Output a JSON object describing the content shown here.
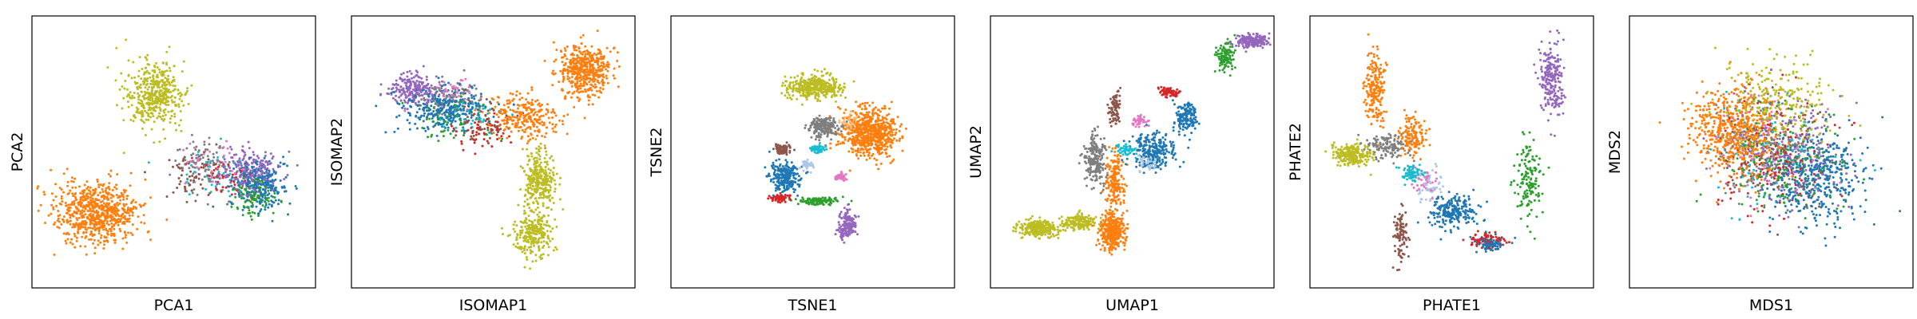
{
  "figure": {
    "background": "#ffffff",
    "axes_color": "#000000"
  },
  "palette": {
    "blue": "#1f77b4",
    "orange": "#ff7f0e",
    "green": "#2ca02c",
    "red": "#d62728",
    "purple": "#9467bd",
    "brown": "#8c564b",
    "pink": "#e377c2",
    "gray": "#7f7f7f",
    "olive": "#bcbd22",
    "cyan": "#17becf",
    "lightblue": "#aec7e8",
    "peach": "#ffbb78"
  },
  "chart_data": [
    {
      "type": "scatter",
      "xlabel": "PCA1",
      "ylabel": "PCA2",
      "xlim": [
        0,
        10
      ],
      "ylim": [
        0,
        10
      ],
      "xticks": [],
      "yticks": [],
      "grid": false,
      "legend": "none",
      "clusters": [
        {
          "color": "orange",
          "center": [
            2.3,
            2.8
          ],
          "spread": [
            1.35,
            1.0
          ],
          "count": 700
        },
        {
          "color": "olive",
          "center": [
            4.3,
            7.1
          ],
          "spread": [
            0.9,
            1.1
          ],
          "count": 450
        },
        {
          "color": "purple",
          "center": [
            7.6,
            4.3
          ],
          "spread": [
            1.0,
            0.8
          ],
          "count": 220
        },
        {
          "color": "blue",
          "center": [
            8.1,
            3.8
          ],
          "spread": [
            0.9,
            0.8
          ],
          "count": 260
        },
        {
          "color": "green",
          "center": [
            7.8,
            3.3
          ],
          "spread": [
            0.7,
            0.6
          ],
          "count": 110
        },
        {
          "color": "gray",
          "center": [
            6.0,
            4.6
          ],
          "spread": [
            1.0,
            0.8
          ],
          "count": 90
        },
        {
          "color": "brown",
          "center": [
            5.6,
            4.2
          ],
          "spread": [
            1.0,
            0.8
          ],
          "count": 60
        },
        {
          "color": "cyan",
          "center": [
            6.5,
            4.2
          ],
          "spread": [
            1.0,
            0.7
          ],
          "count": 50
        },
        {
          "color": "pink",
          "center": [
            6.2,
            4.6
          ],
          "spread": [
            1.0,
            0.8
          ],
          "count": 40
        },
        {
          "color": "red",
          "center": [
            6.8,
            4.0
          ],
          "spread": [
            0.9,
            0.7
          ],
          "count": 40
        }
      ]
    },
    {
      "type": "scatter",
      "xlabel": "ISOMAP1",
      "ylabel": "ISOMAP2",
      "xlim": [
        0,
        10
      ],
      "ylim": [
        0,
        10
      ],
      "xticks": [],
      "yticks": [],
      "grid": false,
      "legend": "none",
      "clusters": [
        {
          "color": "orange",
          "center": [
            8.2,
            8.0
          ],
          "spread": [
            0.9,
            0.9
          ],
          "count": 480
        },
        {
          "color": "orange",
          "center": [
            6.2,
            6.3
          ],
          "spread": [
            1.1,
            0.8
          ],
          "count": 260
        },
        {
          "color": "olive",
          "center": [
            6.6,
            4.0
          ],
          "spread": [
            0.5,
            1.0
          ],
          "count": 300
        },
        {
          "color": "olive",
          "center": [
            6.4,
            2.0
          ],
          "spread": [
            0.6,
            0.8
          ],
          "count": 240
        },
        {
          "color": "blue",
          "center": [
            3.3,
            6.6
          ],
          "spread": [
            1.3,
            0.7
          ],
          "count": 320
        },
        {
          "color": "purple",
          "center": [
            2.2,
            7.3
          ],
          "spread": [
            0.8,
            0.5
          ],
          "count": 200
        },
        {
          "color": "gray",
          "center": [
            3.5,
            7.0
          ],
          "spread": [
            1.0,
            0.6
          ],
          "count": 80
        },
        {
          "color": "brown",
          "center": [
            4.7,
            6.0
          ],
          "spread": [
            0.9,
            0.7
          ],
          "count": 70
        },
        {
          "color": "green",
          "center": [
            3.8,
            6.2
          ],
          "spread": [
            1.1,
            0.7
          ],
          "count": 60
        },
        {
          "color": "red",
          "center": [
            4.6,
            5.8
          ],
          "spread": [
            0.9,
            0.6
          ],
          "count": 50
        },
        {
          "color": "cyan",
          "center": [
            4.2,
            6.4
          ],
          "spread": [
            0.9,
            0.6
          ],
          "count": 40
        },
        {
          "color": "pink",
          "center": [
            3.6,
            7.2
          ],
          "spread": [
            0.9,
            0.5
          ],
          "count": 40
        }
      ]
    },
    {
      "type": "scatter",
      "xlabel": "TSNE1",
      "ylabel": "TSNE2",
      "xlim": [
        0,
        10
      ],
      "ylim": [
        0,
        10
      ],
      "xticks": [],
      "yticks": [],
      "grid": false,
      "legend": "none",
      "clusters": [
        {
          "color": "orange",
          "center": [
            7.0,
            5.7
          ],
          "spread": [
            0.85,
            0.8
          ],
          "count": 650
        },
        {
          "color": "olive",
          "center": [
            5.1,
            7.4
          ],
          "spread": [
            0.9,
            0.38
          ],
          "count": 360
        },
        {
          "color": "gray",
          "center": [
            5.4,
            5.9
          ],
          "spread": [
            0.5,
            0.32
          ],
          "count": 200
        },
        {
          "color": "blue",
          "center": [
            4.0,
            4.1
          ],
          "spread": [
            0.5,
            0.55
          ],
          "count": 230
        },
        {
          "color": "purple",
          "center": [
            6.2,
            2.3
          ],
          "spread": [
            0.3,
            0.5
          ],
          "count": 160
        },
        {
          "color": "green",
          "center": [
            5.2,
            3.2
          ],
          "spread": [
            0.65,
            0.12
          ],
          "count": 110
        },
        {
          "color": "red",
          "center": [
            3.9,
            3.3
          ],
          "spread": [
            0.3,
            0.12
          ],
          "count": 60
        },
        {
          "color": "brown",
          "center": [
            3.9,
            5.1
          ],
          "spread": [
            0.3,
            0.18
          ],
          "count": 70
        },
        {
          "color": "cyan",
          "center": [
            5.2,
            5.1
          ],
          "spread": [
            0.22,
            0.15
          ],
          "count": 55
        },
        {
          "color": "pink",
          "center": [
            6.0,
            4.1
          ],
          "spread": [
            0.18,
            0.14
          ],
          "count": 40
        },
        {
          "color": "lightblue",
          "center": [
            4.8,
            4.5
          ],
          "spread": [
            0.2,
            0.15
          ],
          "count": 40
        },
        {
          "color": "peach",
          "center": [
            6.3,
            6.1
          ],
          "spread": [
            0.35,
            0.3
          ],
          "count": 50
        }
      ]
    },
    {
      "type": "scatter",
      "xlabel": "UMAP1",
      "ylabel": "UMAP2",
      "xlim": [
        0,
        10
      ],
      "ylim": [
        0,
        10
      ],
      "xticks": [],
      "yticks": [],
      "grid": false,
      "legend": "none",
      "clusters": [
        {
          "color": "olive",
          "center": [
            1.7,
            2.2
          ],
          "spread": [
            0.6,
            0.28
          ],
          "count": 300
        },
        {
          "color": "olive",
          "center": [
            3.1,
            2.4
          ],
          "spread": [
            0.6,
            0.3
          ],
          "count": 160
        },
        {
          "color": "orange",
          "center": [
            4.3,
            2.1
          ],
          "spread": [
            0.4,
            0.6
          ],
          "count": 360
        },
        {
          "color": "orange",
          "center": [
            4.4,
            4.0
          ],
          "spread": [
            0.3,
            0.9
          ],
          "count": 180
        },
        {
          "color": "gray",
          "center": [
            3.7,
            4.7
          ],
          "spread": [
            0.35,
            0.9
          ],
          "count": 200
        },
        {
          "color": "blue",
          "center": [
            5.7,
            5.0
          ],
          "spread": [
            0.7,
            0.6
          ],
          "count": 240
        },
        {
          "color": "blue",
          "center": [
            6.9,
            6.3
          ],
          "spread": [
            0.35,
            0.5
          ],
          "count": 150
        },
        {
          "color": "brown",
          "center": [
            4.4,
            6.6
          ],
          "spread": [
            0.2,
            0.6
          ],
          "count": 80
        },
        {
          "color": "red",
          "center": [
            6.3,
            7.2
          ],
          "spread": [
            0.35,
            0.15
          ],
          "count": 90
        },
        {
          "color": "green",
          "center": [
            8.3,
            8.5
          ],
          "spread": [
            0.3,
            0.45
          ],
          "count": 110
        },
        {
          "color": "purple",
          "center": [
            9.2,
            9.1
          ],
          "spread": [
            0.5,
            0.22
          ],
          "count": 170
        },
        {
          "color": "cyan",
          "center": [
            4.8,
            5.1
          ],
          "spread": [
            0.3,
            0.2
          ],
          "count": 50
        },
        {
          "color": "pink",
          "center": [
            5.3,
            6.1
          ],
          "spread": [
            0.25,
            0.2
          ],
          "count": 40
        },
        {
          "color": "lightblue",
          "center": [
            5.5,
            4.6
          ],
          "spread": [
            0.3,
            0.3
          ],
          "count": 40
        }
      ]
    },
    {
      "type": "scatter",
      "xlabel": "PHATE1",
      "ylabel": "PHATE2",
      "xlim": [
        0,
        10
      ],
      "ylim": [
        0,
        10
      ],
      "xticks": [],
      "yticks": [],
      "grid": false,
      "legend": "none",
      "clusters": [
        {
          "color": "olive",
          "center": [
            1.5,
            4.9
          ],
          "spread": [
            0.55,
            0.4
          ],
          "count": 220
        },
        {
          "color": "orange",
          "center": [
            2.3,
            7.4
          ],
          "spread": [
            0.35,
            1.2
          ],
          "count": 200
        },
        {
          "color": "orange",
          "center": [
            3.6,
            5.6
          ],
          "spread": [
            0.45,
            0.7
          ],
          "count": 140
        },
        {
          "color": "gray",
          "center": [
            2.7,
            5.2
          ],
          "spread": [
            0.7,
            0.4
          ],
          "count": 130
        },
        {
          "color": "blue",
          "center": [
            5.1,
            2.8
          ],
          "spread": [
            0.8,
            0.6
          ],
          "count": 220
        },
        {
          "color": "blue",
          "center": [
            6.4,
            1.6
          ],
          "spread": [
            0.4,
            0.25
          ],
          "count": 90
        },
        {
          "color": "brown",
          "center": [
            3.2,
            2.0
          ],
          "spread": [
            0.22,
            1.0
          ],
          "count": 100
        },
        {
          "color": "cyan",
          "center": [
            3.6,
            4.2
          ],
          "spread": [
            0.35,
            0.3
          ],
          "count": 70
        },
        {
          "color": "red",
          "center": [
            6.2,
            1.8
          ],
          "spread": [
            0.6,
            0.25
          ],
          "count": 80
        },
        {
          "color": "green",
          "center": [
            7.7,
            4.0
          ],
          "spread": [
            0.4,
            1.3
          ],
          "count": 140
        },
        {
          "color": "purple",
          "center": [
            8.5,
            7.7
          ],
          "spread": [
            0.4,
            1.2
          ],
          "count": 220
        },
        {
          "color": "pink",
          "center": [
            4.0,
            4.0
          ],
          "spread": [
            0.4,
            0.5
          ],
          "count": 40
        },
        {
          "color": "lightblue",
          "center": [
            4.2,
            3.8
          ],
          "spread": [
            0.4,
            0.6
          ],
          "count": 50
        }
      ]
    },
    {
      "type": "scatter",
      "xlabel": "MDS1",
      "ylabel": "MDS2",
      "xlim": [
        0,
        10
      ],
      "ylim": [
        0,
        10
      ],
      "xticks": [],
      "yticks": [],
      "grid": false,
      "legend": "none",
      "clusters": [
        {
          "color": "orange",
          "center": [
            3.8,
            5.8
          ],
          "spread": [
            1.4,
            1.5
          ],
          "count": 620
        },
        {
          "color": "blue",
          "center": [
            6.6,
            4.0
          ],
          "spread": [
            1.5,
            1.5
          ],
          "count": 420
        },
        {
          "color": "olive",
          "center": [
            5.2,
            6.8
          ],
          "spread": [
            1.7,
            1.5
          ],
          "count": 260
        },
        {
          "color": "purple",
          "center": [
            5.6,
            5.0
          ],
          "spread": [
            1.8,
            1.8
          ],
          "count": 220
        },
        {
          "color": "green",
          "center": [
            5.4,
            4.6
          ],
          "spread": [
            1.8,
            1.8
          ],
          "count": 180
        },
        {
          "color": "gray",
          "center": [
            5.0,
            5.0
          ],
          "spread": [
            1.8,
            1.8
          ],
          "count": 140
        },
        {
          "color": "brown",
          "center": [
            5.0,
            5.0
          ],
          "spread": [
            1.8,
            1.8
          ],
          "count": 120
        },
        {
          "color": "red",
          "center": [
            5.2,
            4.8
          ],
          "spread": [
            1.8,
            1.8
          ],
          "count": 120
        },
        {
          "color": "cyan",
          "center": [
            5.0,
            5.0
          ],
          "spread": [
            1.8,
            1.8
          ],
          "count": 90
        },
        {
          "color": "pink",
          "center": [
            5.0,
            5.0
          ],
          "spread": [
            1.8,
            1.8
          ],
          "count": 80
        }
      ]
    }
  ]
}
